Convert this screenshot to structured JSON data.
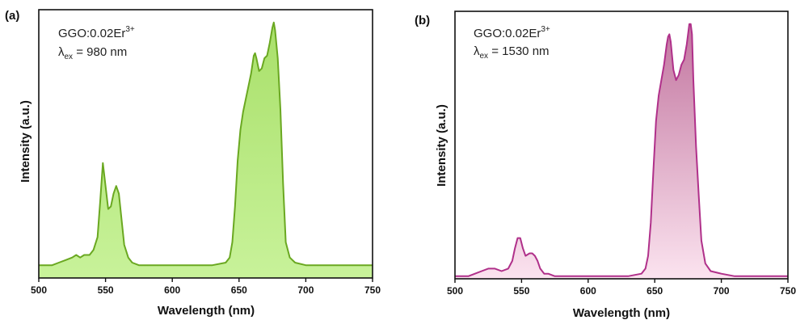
{
  "chart_data": [
    {
      "type": "area",
      "panel_label": "(a)",
      "xlabel": "Wavelength (nm)",
      "ylabel": "Intensity (a.u.)",
      "xlim": [
        500,
        750
      ],
      "ylim": [
        0,
        1.05
      ],
      "xticks": [
        500,
        550,
        600,
        650,
        700,
        750
      ],
      "annotation": {
        "compound": "GGO:0.02Er",
        "compound_sup": "3+",
        "lambda": "λ",
        "lambda_sub": "ex",
        "excitation": " = 980 nm"
      },
      "line_color": "#6aa821",
      "fill_top": "#a9e06a",
      "fill_bottom": "#c8f29a",
      "series": [
        {
          "x": [
            500,
            505,
            510,
            515,
            520,
            525,
            528,
            531,
            534,
            538,
            541,
            544,
            546,
            548,
            550,
            552,
            554,
            556,
            558,
            560,
            562,
            564,
            567,
            570,
            575,
            580,
            590,
            600,
            610,
            620,
            630,
            640,
            643,
            645,
            647,
            649,
            651,
            653,
            655,
            657,
            659,
            661,
            662,
            663,
            665,
            667,
            669,
            671,
            673,
            675,
            676,
            677,
            679,
            681,
            683,
            685,
            688,
            692,
            700,
            710,
            720,
            730,
            740,
            750
          ],
          "y": [
            0.05,
            0.05,
            0.05,
            0.06,
            0.07,
            0.08,
            0.09,
            0.08,
            0.09,
            0.09,
            0.11,
            0.16,
            0.3,
            0.45,
            0.36,
            0.27,
            0.28,
            0.33,
            0.36,
            0.33,
            0.23,
            0.13,
            0.08,
            0.06,
            0.05,
            0.05,
            0.05,
            0.05,
            0.05,
            0.05,
            0.05,
            0.06,
            0.08,
            0.14,
            0.28,
            0.46,
            0.58,
            0.65,
            0.7,
            0.75,
            0.8,
            0.87,
            0.88,
            0.86,
            0.81,
            0.82,
            0.86,
            0.87,
            0.92,
            0.98,
            1.0,
            0.97,
            0.86,
            0.66,
            0.37,
            0.14,
            0.08,
            0.06,
            0.05,
            0.05,
            0.05,
            0.05,
            0.05,
            0.05
          ]
        }
      ]
    },
    {
      "type": "area",
      "panel_label": "(b)",
      "xlabel": "Wavelength (nm)",
      "ylabel": "Intensity (a.u.)",
      "xlim": [
        500,
        750
      ],
      "ylim": [
        0,
        1.05
      ],
      "xticks": [
        500,
        550,
        600,
        650,
        700,
        750
      ],
      "annotation": {
        "compound": "GGO:0.02Er",
        "compound_sup": "3+",
        "lambda": "λ",
        "lambda_sub": "ex",
        "excitation": " = 1530 nm"
      },
      "line_color": "#b0308a",
      "fill_top": "#c2759f",
      "fill_bottom": "#fbe3ef",
      "series": [
        {
          "x": [
            500,
            505,
            510,
            515,
            520,
            525,
            530,
            535,
            540,
            543,
            545,
            547,
            549,
            551,
            553,
            556,
            558,
            560,
            562,
            564,
            567,
            570,
            575,
            580,
            590,
            600,
            610,
            620,
            630,
            640,
            643,
            645,
            647,
            649,
            651,
            653,
            655,
            657,
            659,
            660,
            661,
            662,
            664,
            666,
            668,
            670,
            672,
            674,
            676,
            677,
            678,
            679,
            681,
            683,
            685,
            688,
            692,
            700,
            710,
            720,
            730,
            740,
            750
          ],
          "y": [
            0.01,
            0.01,
            0.01,
            0.02,
            0.03,
            0.04,
            0.04,
            0.03,
            0.04,
            0.07,
            0.12,
            0.16,
            0.16,
            0.12,
            0.09,
            0.1,
            0.1,
            0.09,
            0.07,
            0.04,
            0.02,
            0.02,
            0.01,
            0.01,
            0.01,
            0.01,
            0.01,
            0.01,
            0.01,
            0.02,
            0.04,
            0.09,
            0.22,
            0.43,
            0.62,
            0.72,
            0.78,
            0.84,
            0.92,
            0.95,
            0.96,
            0.93,
            0.82,
            0.78,
            0.8,
            0.84,
            0.86,
            0.92,
            1.0,
            1.0,
            0.96,
            0.78,
            0.52,
            0.33,
            0.15,
            0.06,
            0.03,
            0.02,
            0.01,
            0.01,
            0.01,
            0.01,
            0.01
          ]
        }
      ]
    }
  ]
}
